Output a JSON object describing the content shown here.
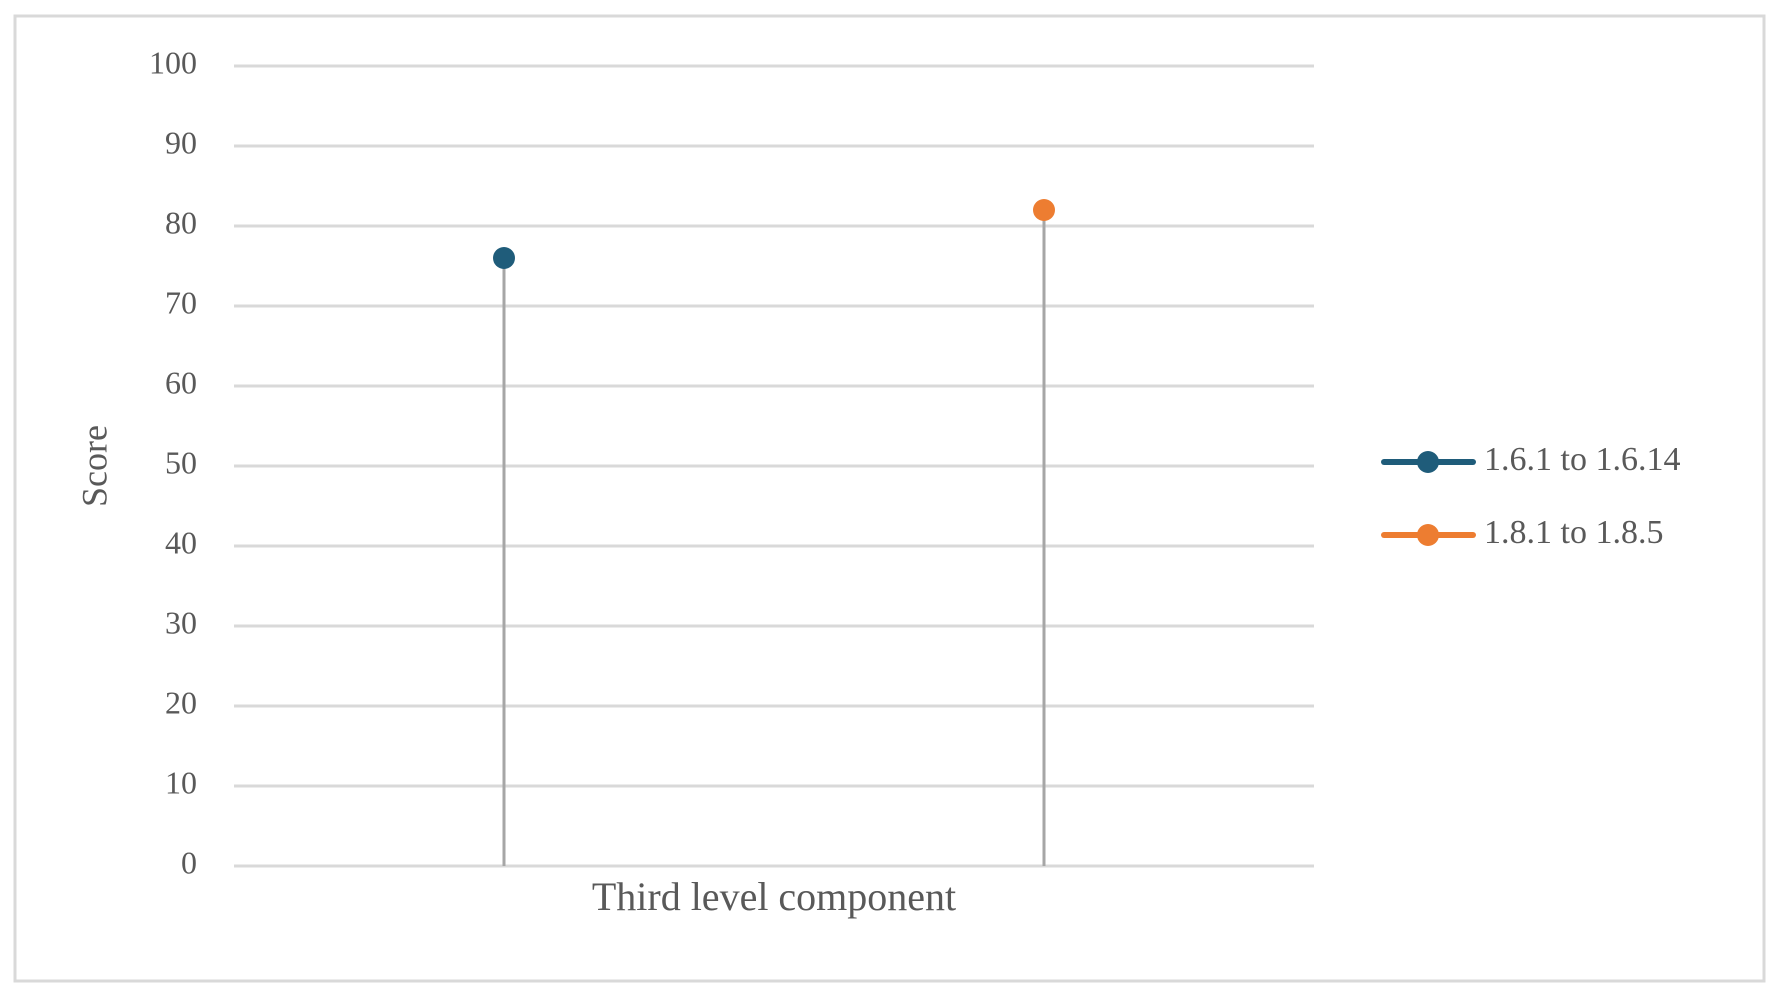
{
  "chart_data": {
    "type": "lollipop",
    "categories": [
      "Third level component"
    ],
    "y_label": "Score",
    "series": [
      {
        "name": "1.6.1 to 1.6.14",
        "color": "#1f5c7a",
        "values": [
          76
        ]
      },
      {
        "name": "1.8.1 to 1.8.5",
        "color": "#ed7d31",
        "values": [
          82
        ]
      }
    ],
    "ylim": [
      0,
      100
    ],
    "yticks": [
      0,
      10,
      20,
      30,
      40,
      50,
      60,
      70,
      80,
      90,
      100
    ],
    "grid": true,
    "legend": "right"
  }
}
